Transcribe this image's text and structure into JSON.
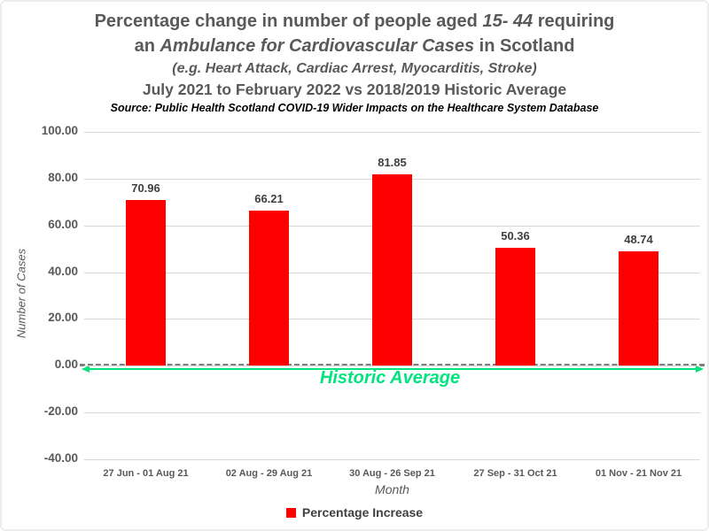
{
  "title": {
    "line1_pre": "Percentage change in number of people aged ",
    "line1_italic": "15- 44",
    "line1_post": " requiring",
    "line2_pre": "an ",
    "line2_italic": "Ambulance for Cardiovascular Cases",
    "line2_post": " in Scotland",
    "line3": "(e.g. Heart Attack, Cardiac Arrest, Myocarditis, Stroke)",
    "line4": "July 2021 to February 2022 vs 2018/2019 Historic Average",
    "source": "Source: Public Health Scotland COVID-19 Wider Impacts on the Healthcare System Database"
  },
  "chart_data": {
    "type": "bar",
    "categories": [
      "27 Jun - 01 Aug 21",
      "02 Aug - 29 Aug 21",
      "30 Aug - 26 Sep 21",
      "27 Sep - 31 Oct 21",
      "01 Nov - 21 Nov 21"
    ],
    "series": [
      {
        "name": "Percentage Increase",
        "values": [
          70.96,
          66.21,
          81.85,
          50.36,
          48.74
        ],
        "color": "#ff0000"
      }
    ],
    "value_labels": [
      "70.96",
      "66.21",
      "81.85",
      "50.36",
      "48.74"
    ],
    "title": "Percentage change in number of people aged 15- 44 requiring an Ambulance for Cardiovascular Cases in Scotland",
    "xlabel": "Month",
    "ylabel": "Number of Cases",
    "ylim": [
      -40,
      100
    ],
    "ytick_labels": [
      "100.00",
      "80.00",
      "60.00",
      "40.00",
      "20.00",
      "0.00",
      "-20.00",
      "-40.00"
    ],
    "grid": true,
    "reference_line": {
      "value": 0,
      "label": "Historic Average",
      "line_style": "gray dashed with green double-headed arrow"
    },
    "legend": {
      "position": "bottom",
      "entries": [
        "Percentage Increase"
      ]
    }
  },
  "colors": {
    "bar_red": "#ff0000",
    "accent_green": "#00e57d",
    "title_gray": "#595959",
    "gridline_gray": "#d9d9d9",
    "dashed_line_gray": "#7f7f7f"
  }
}
